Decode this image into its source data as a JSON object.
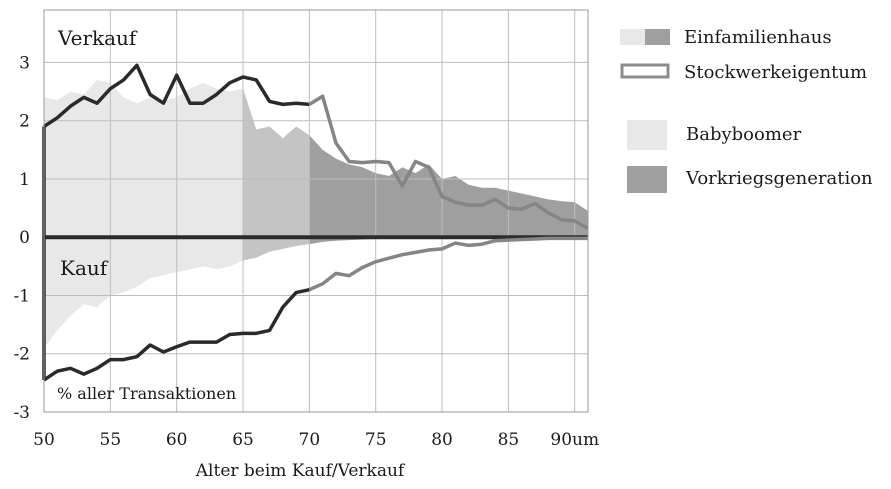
{
  "chart_data": {
    "type": "area",
    "xlabel": "Alter beim Kauf/Verkauf",
    "x_tick_labels": [
      "50",
      "55",
      "60",
      "65",
      "70",
      "75",
      "80",
      "85",
      "90um"
    ],
    "y_tick_labels": [
      "3",
      "2",
      "1",
      "0",
      "-1",
      "-2",
      "-3"
    ],
    "xlim": [
      50,
      91
    ],
    "ylim": [
      -3,
      3.9
    ],
    "grid": true,
    "annotations": {
      "verkauf": "Verkauf",
      "kauf": "Kauf",
      "y_unit": "% aller Transaktionen"
    },
    "legend": {
      "position": "right",
      "items": [
        {
          "label": "Einfamilienhaus",
          "style": "split-filled"
        },
        {
          "label": "Stockwerkeigentum",
          "style": "outline"
        },
        {
          "label": "Babyboomer",
          "style": "light-fill"
        },
        {
          "label": "Vorkriegsgeneration",
          "style": "dark-fill"
        }
      ]
    },
    "generation_bands": [
      {
        "name": "Babyboomer",
        "x_from": 50,
        "x_to": 65
      },
      {
        "name": "Vorkriegsgeneration",
        "x_from": 70,
        "x_to": 91
      }
    ],
    "colors": {
      "babyboomer_fill": "#e8e8e8",
      "transition_fill": "#c4c4c4",
      "vorkriegs_fill": "#9f9f9f",
      "line_babyboomer": "#2a2a2a",
      "line_vorkriegs": "#858585"
    },
    "series": [
      {
        "name": "Einfamilienhaus",
        "part": "Verkauf",
        "x": [
          50,
          51,
          52,
          53,
          54,
          55,
          56,
          57,
          58,
          59,
          60,
          61,
          62,
          63,
          64,
          65,
          66,
          67,
          68,
          69,
          70,
          71,
          72,
          73,
          74,
          75,
          76,
          77,
          78,
          79,
          80,
          81,
          82,
          83,
          84,
          85,
          86,
          87,
          88,
          89,
          90,
          91
        ],
        "values": [
          2.4,
          2.35,
          2.5,
          2.45,
          2.7,
          2.65,
          2.4,
          2.3,
          2.4,
          2.35,
          2.4,
          2.55,
          2.65,
          2.55,
          2.5,
          2.55,
          1.85,
          1.9,
          1.7,
          1.9,
          1.75,
          1.5,
          1.35,
          1.25,
          1.2,
          1.1,
          1.05,
          1.2,
          1.1,
          1.25,
          1.0,
          1.05,
          0.9,
          0.85,
          0.85,
          0.8,
          0.75,
          0.7,
          0.65,
          0.62,
          0.6,
          0.45
        ]
      },
      {
        "name": "Einfamilienhaus",
        "part": "Kauf",
        "x": [
          50,
          51,
          52,
          53,
          54,
          55,
          56,
          57,
          58,
          59,
          60,
          61,
          62,
          63,
          64,
          65,
          66,
          67,
          68,
          69,
          70,
          71,
          72,
          73,
          74,
          75,
          76,
          77,
          78,
          79,
          80,
          81,
          82,
          83,
          84,
          85,
          86,
          87,
          88,
          89,
          90,
          91
        ],
        "values": [
          -1.9,
          -1.6,
          -1.35,
          -1.15,
          -1.2,
          -1.0,
          -0.95,
          -0.85,
          -0.7,
          -0.65,
          -0.6,
          -0.55,
          -0.5,
          -0.55,
          -0.5,
          -0.4,
          -0.35,
          -0.25,
          -0.2,
          -0.15,
          -0.12,
          -0.08,
          -0.06,
          -0.05,
          -0.04,
          -0.03,
          -0.03,
          -0.02,
          -0.02,
          -0.02,
          -0.01,
          -0.01,
          -0.01,
          -0.01,
          -0.01,
          -0.01,
          -0.01,
          -0.01,
          -0.01,
          -0.01,
          -0.01,
          -0.01
        ]
      },
      {
        "name": "Stockwerkeigentum",
        "part": "Verkauf",
        "x": [
          50,
          51,
          52,
          53,
          54,
          55,
          56,
          57,
          58,
          59,
          60,
          61,
          62,
          63,
          64,
          65,
          66,
          67,
          68,
          69,
          70,
          71,
          72,
          73,
          74,
          75,
          76,
          77,
          78,
          79,
          80,
          81,
          82,
          83,
          84,
          85,
          86,
          87,
          88,
          89,
          90,
          91
        ],
        "values": [
          1.9,
          2.05,
          2.25,
          2.4,
          2.3,
          2.55,
          2.7,
          2.95,
          2.45,
          2.3,
          2.78,
          2.3,
          2.3,
          2.45,
          2.65,
          2.75,
          2.7,
          2.33,
          2.28,
          2.3,
          2.28,
          2.42,
          1.62,
          1.3,
          1.28,
          1.3,
          1.28,
          0.88,
          1.3,
          1.2,
          0.7,
          0.6,
          0.55,
          0.55,
          0.65,
          0.5,
          0.48,
          0.58,
          0.42,
          0.3,
          0.28,
          0.15
        ]
      },
      {
        "name": "Stockwerkeigentum",
        "part": "Kauf",
        "x": [
          50,
          51,
          52,
          53,
          54,
          55,
          56,
          57,
          58,
          59,
          60,
          61,
          62,
          63,
          64,
          65,
          66,
          67,
          68,
          69,
          70,
          71,
          72,
          73,
          74,
          75,
          76,
          77,
          78,
          79,
          80,
          81,
          82,
          83,
          84,
          85,
          86,
          87,
          88,
          89,
          90,
          91
        ],
        "values": [
          -2.45,
          -2.3,
          -2.25,
          -2.35,
          -2.25,
          -2.1,
          -2.1,
          -2.05,
          -1.85,
          -1.97,
          -1.88,
          -1.8,
          -1.8,
          -1.8,
          -1.67,
          -1.65,
          -1.65,
          -1.6,
          -1.2,
          -0.95,
          -0.9,
          -0.8,
          -0.62,
          -0.66,
          -0.52,
          -0.42,
          -0.36,
          -0.3,
          -0.26,
          -0.22,
          -0.2,
          -0.1,
          -0.14,
          -0.12,
          -0.06,
          -0.05,
          -0.04,
          -0.03,
          -0.02,
          -0.02,
          -0.02,
          -0.02
        ]
      }
    ]
  }
}
